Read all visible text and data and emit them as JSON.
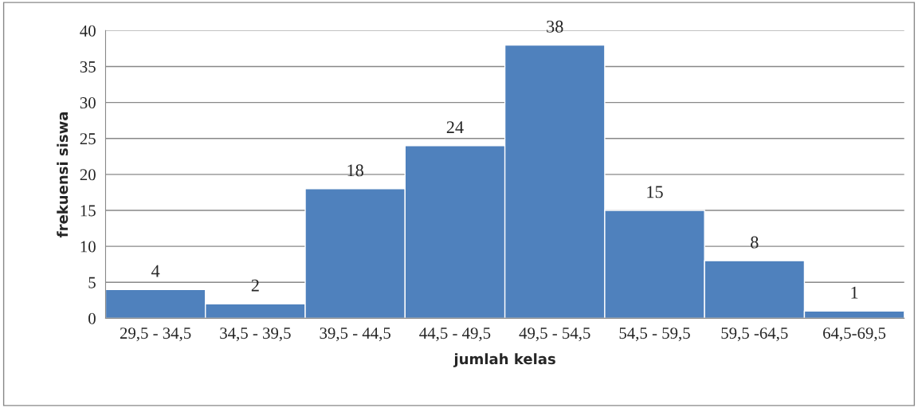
{
  "chart_data": {
    "type": "bar",
    "xlabel": "jumlah kelas",
    "ylabel": "frekuensi siswa",
    "categories": [
      "29,5 - 34,5",
      "34,5 - 39,5",
      "39,5 - 44,5",
      "44,5 - 49,5",
      "49,5 - 54,5",
      "54,5 - 59,5",
      "59,5 -64,5",
      "64,5-69,5"
    ],
    "values": [
      4,
      2,
      18,
      24,
      38,
      15,
      8,
      1
    ],
    "color": "#4f81bd",
    "ylim": [
      0,
      40
    ],
    "yticks": [
      0,
      5,
      10,
      15,
      20,
      25,
      30,
      35,
      40
    ],
    "grid": "y",
    "data_labels": true
  }
}
